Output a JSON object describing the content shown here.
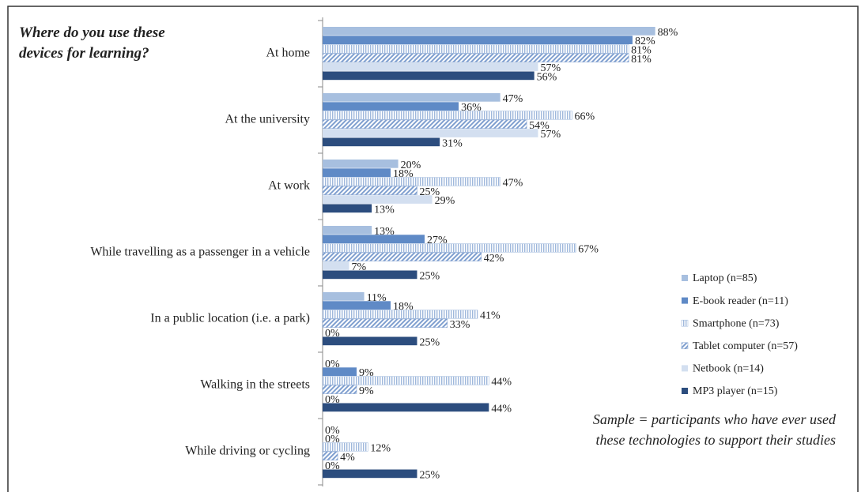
{
  "chart_data": {
    "type": "bar",
    "orientation": "horizontal",
    "title": "Where do you use these devices for learning?",
    "annotation": "Sample = participants who have ever used these technologies to support their studies",
    "categories": [
      "At home",
      "At the university",
      "At work",
      "While travelling as a passenger in a vehicle",
      "In a public location (i.e. a park)",
      "Walking in the streets",
      "While driving or cycling"
    ],
    "xlim": [
      0,
      100
    ],
    "legend": "right",
    "series": [
      {
        "name": "Laptop (n=85)",
        "color": "#a7bfdf",
        "hatch": "none",
        "values": [
          88,
          47,
          20,
          13,
          11,
          0,
          0
        ],
        "value_labels": [
          "88%",
          "47%",
          "20%",
          "13%",
          "11%",
          "0%",
          "0%"
        ]
      },
      {
        "name": "E-book reader (n=11)",
        "color": "#5f8ac6",
        "hatch": "none",
        "values": [
          82,
          36,
          18,
          27,
          18,
          9,
          0
        ],
        "value_labels": [
          "82%",
          "36%",
          "18%",
          "27%",
          "18%",
          "9%",
          "0%"
        ]
      },
      {
        "name": "Smartphone (n=73)",
        "color": "#9fb8dc",
        "hatch": "vertical",
        "values": [
          81,
          66,
          47,
          67,
          41,
          44,
          12
        ],
        "value_labels": [
          "81%",
          "66%",
          "47%",
          "67%",
          "41%",
          "44%",
          "12%"
        ]
      },
      {
        "name": "Tablet computer (n=57)",
        "color": "#7f9fcf",
        "hatch": "diagonal",
        "values": [
          81,
          54,
          25,
          42,
          33,
          9,
          4
        ],
        "value_labels": [
          "81%",
          "54%",
          "25%",
          "42%",
          "33%",
          "9%",
          "4%"
        ]
      },
      {
        "name": "Netbook (n=14)",
        "color": "#d3dff0",
        "hatch": "none",
        "values": [
          57,
          57,
          29,
          7,
          0,
          0,
          0
        ],
        "value_labels": [
          "57%",
          "57%",
          "29%",
          "7%",
          "0%",
          "0%",
          "0%"
        ]
      },
      {
        "name": "MP3 player (n=15)",
        "color": "#2c4d7e",
        "hatch": "none",
        "values": [
          56,
          31,
          13,
          25,
          25,
          44,
          25
        ],
        "value_labels": [
          "56%",
          "31%",
          "13%",
          "25%",
          "25%",
          "44%",
          "25%"
        ]
      }
    ]
  }
}
